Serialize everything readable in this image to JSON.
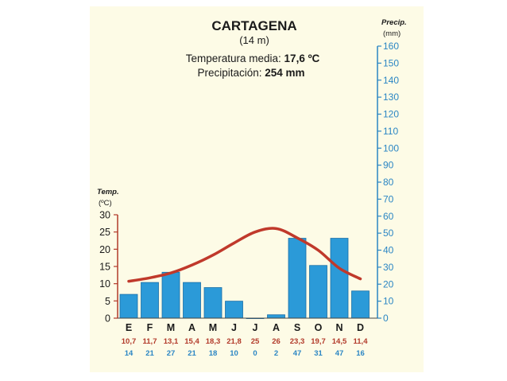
{
  "chart_data": {
    "type": "climograph",
    "title": "CARTAGENA",
    "subtitle": "(14 m)",
    "info": {
      "temp_label": "Temperatura media: ",
      "temp_value": "17,6 ºC",
      "precip_label": "Precipitación: ",
      "precip_value": "254 mm"
    },
    "left_axis": {
      "label": "Temp.",
      "unit": "(ºC)",
      "ylim": [
        0,
        30
      ],
      "ticks": [
        "0",
        "5",
        "10",
        "15",
        "20",
        "25",
        "30"
      ]
    },
    "right_axis": {
      "label": "Precip.",
      "unit": "(mm)",
      "ylim": [
        0,
        160
      ],
      "ticks": [
        "0",
        "10",
        "20",
        "30",
        "40",
        "50",
        "60",
        "70",
        "80",
        "90",
        "100",
        "110",
        "120",
        "130",
        "140",
        "150",
        "160"
      ]
    },
    "months": [
      "E",
      "F",
      "M",
      "A",
      "M",
      "J",
      "J",
      "A",
      "S",
      "O",
      "N",
      "D"
    ],
    "temperature_labels": [
      "10,7",
      "11,7",
      "13,1",
      "15,4",
      "18,3",
      "21,8",
      "25",
      "26",
      "23,3",
      "19,7",
      "14,5",
      "11,4"
    ],
    "temperature": [
      10.7,
      11.7,
      13.1,
      15.4,
      18.3,
      21.8,
      25,
      26,
      23.3,
      19.7,
      14.5,
      11.4
    ],
    "precipitation_labels": [
      "14",
      "21",
      "27",
      "21",
      "18",
      "10",
      "0",
      "2",
      "47",
      "31",
      "47",
      "16"
    ],
    "precipitation": [
      14,
      21,
      27,
      21,
      18,
      10,
      0,
      2,
      47,
      31,
      47,
      16
    ],
    "colors": {
      "bars": "#2b9ad8",
      "bar_edge": "#1a6fa8",
      "line": "#c0392b",
      "left_axis": "#b23a2a",
      "right_axis": "#2b86c4",
      "background": "#fdfbe6"
    }
  }
}
